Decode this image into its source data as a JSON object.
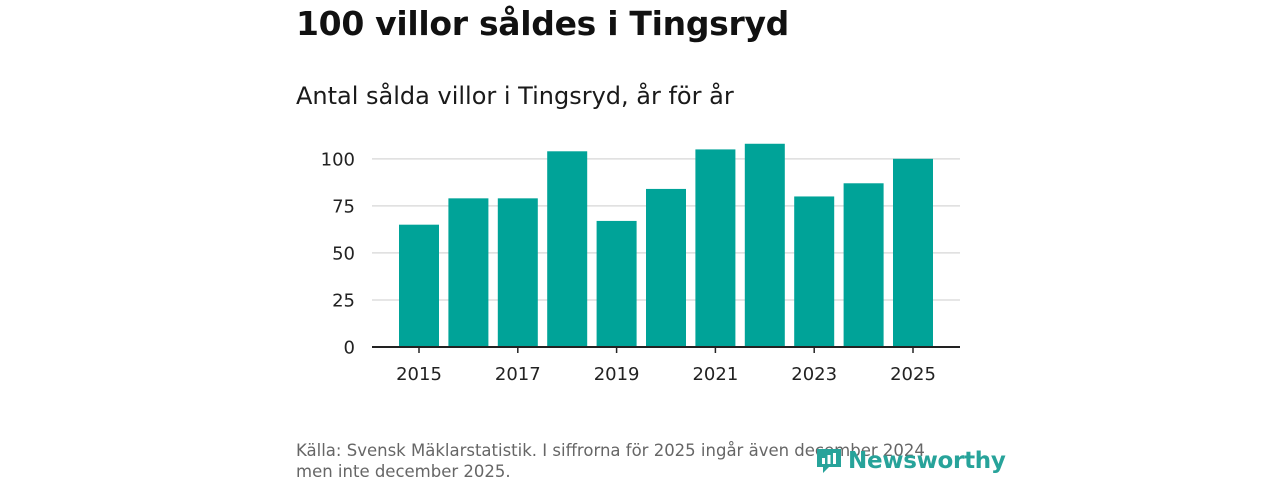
{
  "title": "100 villor såldes i Tingsryd",
  "subtitle": "Antal sålda villor i Tingsryd, år för år",
  "source": "Källa: Svensk Mäklarstatistik. I siffrorna för 2025 ingår även december 2024 men inte december 2025.",
  "logo_text": "Newsworthy",
  "colors": {
    "bar": "#00a398",
    "grid": "#dddddd",
    "axis": "#222222",
    "logo": "#27a39a"
  },
  "chart_data": {
    "type": "bar",
    "title": "100 villor såldes i Tingsryd",
    "subtitle": "Antal sålda villor i Tingsryd, år för år",
    "xlabel": "",
    "ylabel": "",
    "categories": [
      "2015",
      "2016",
      "2017",
      "2018",
      "2019",
      "2020",
      "2021",
      "2022",
      "2023",
      "2024",
      "2025"
    ],
    "values": [
      65,
      79,
      79,
      104,
      67,
      84,
      105,
      108,
      80,
      87,
      100
    ],
    "ylim": [
      0,
      110
    ],
    "yticks": [
      0,
      25,
      50,
      75,
      100
    ],
    "xtick_labels": [
      "2015",
      "2017",
      "2019",
      "2021",
      "2023",
      "2025"
    ],
    "grid": true,
    "legend": "none"
  }
}
